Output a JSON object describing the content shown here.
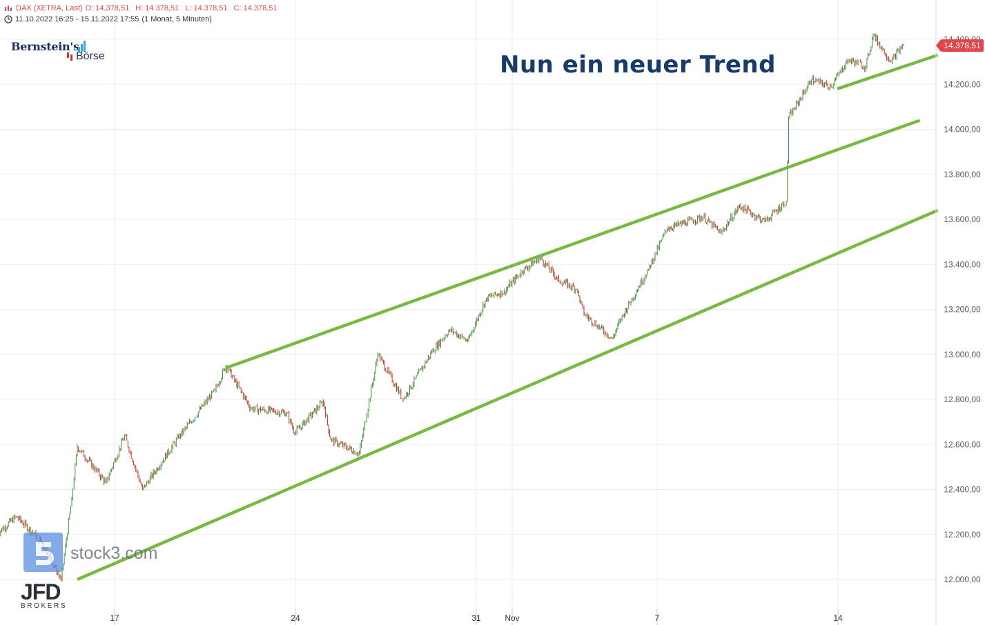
{
  "header": {
    "instrument": "DAX (XETRA, Last)",
    "open": "O: 14,378,51",
    "high": "H: 14.378,51",
    "low": "L: 14.378,51",
    "close": "C: 14.378,51",
    "range": "11.10.2022 16:25 - 15.11.2022 17:55",
    "interval": "(1 Monat, 5 Minuten)"
  },
  "logos": {
    "bernstein_1": "Bernstein's",
    "bernstein_2": "Börse",
    "watermark": "stock3.com",
    "broker": "JFD",
    "broker_sub": "BROKERS"
  },
  "annotation": "Nun ein neuer Trend",
  "last_price_label": "14.378,51",
  "colors": {
    "trendline": "#79b941",
    "candle_up": "#3a8f3a",
    "candle_down": "#c0392b",
    "price_tag": "#e0464a",
    "annotation": "#173c6b",
    "grid": "#eeeeee"
  },
  "chart_data": {
    "type": "line",
    "title": "DAX (XETRA, Last)",
    "ylim": [
      11900,
      14450
    ],
    "y_ticks": [
      12000,
      12200,
      12400,
      12600,
      12800,
      13000,
      13200,
      13400,
      13600,
      13800,
      14000,
      14200,
      14400
    ],
    "y_tick_labels": [
      "12.000,00",
      "12.200,00",
      "12.400,00",
      "12.600,00",
      "12.800,00",
      "13.000,00",
      "13.200,00",
      "13.400,00",
      "13.600,00",
      "13.800,00",
      "14.000,00",
      "14.200,00",
      "14.400,00"
    ],
    "x_ticks": [
      {
        "label": "17",
        "date": "2022-10-17"
      },
      {
        "label": "24",
        "date": "2022-10-24"
      },
      {
        "label": "31",
        "date": "2022-10-31"
      },
      {
        "label": "Nov",
        "date": "2022-11-01"
      },
      {
        "label": "7",
        "date": "2022-11-07"
      },
      {
        "label": "14",
        "date": "2022-11-14"
      }
    ],
    "series": [
      {
        "values": [
          {
            "x": "2022-10-11 16:25",
            "y": 12200
          },
          {
            "x": "2022-10-12 12:00",
            "y": 12280
          },
          {
            "x": "2022-10-13 09:00",
            "y": 12170
          },
          {
            "x": "2022-10-13 14:30",
            "y": 12000
          },
          {
            "x": "2022-10-13 17:30",
            "y": 12360
          },
          {
            "x": "2022-10-14 09:00",
            "y": 12590
          },
          {
            "x": "2022-10-14 17:00",
            "y": 12430
          },
          {
            "x": "2022-10-17 12:00",
            "y": 12640
          },
          {
            "x": "2022-10-17 17:00",
            "y": 12400
          },
          {
            "x": "2022-10-18 17:00",
            "y": 12630
          },
          {
            "x": "2022-10-19 17:00",
            "y": 12840
          },
          {
            "x": "2022-10-20 10:00",
            "y": 12950
          },
          {
            "x": "2022-10-20 17:00",
            "y": 12760
          },
          {
            "x": "2022-10-21 17:00",
            "y": 12740
          },
          {
            "x": "2022-10-24 09:00",
            "y": 12650
          },
          {
            "x": "2022-10-24 17:00",
            "y": 12790
          },
          {
            "x": "2022-10-25 09:00",
            "y": 12620
          },
          {
            "x": "2022-10-25 17:00",
            "y": 12560
          },
          {
            "x": "2022-10-26 12:00",
            "y": 13000
          },
          {
            "x": "2022-10-27 09:00",
            "y": 12800
          },
          {
            "x": "2022-10-27 17:00",
            "y": 13010
          },
          {
            "x": "2022-10-28 12:00",
            "y": 13110
          },
          {
            "x": "2022-10-28 17:00",
            "y": 13060
          },
          {
            "x": "2022-10-31 12:00",
            "y": 13250
          },
          {
            "x": "2022-10-31 17:00",
            "y": 13280
          },
          {
            "x": "2022-11-01 12:00",
            "y": 13370
          },
          {
            "x": "2022-11-01 17:00",
            "y": 13430
          },
          {
            "x": "2022-11-02 12:00",
            "y": 13330
          },
          {
            "x": "2022-11-02 17:00",
            "y": 13290
          },
          {
            "x": "2022-11-03 09:00",
            "y": 13180
          },
          {
            "x": "2022-11-03 17:00",
            "y": 13070
          },
          {
            "x": "2022-11-04 09:00",
            "y": 13150
          },
          {
            "x": "2022-11-04 17:00",
            "y": 13380
          },
          {
            "x": "2022-11-07 12:00",
            "y": 13560
          },
          {
            "x": "2022-11-08 12:00",
            "y": 13610
          },
          {
            "x": "2022-11-08 17:00",
            "y": 13540
          },
          {
            "x": "2022-11-09 12:00",
            "y": 13660
          },
          {
            "x": "2022-11-10 09:00",
            "y": 13590
          },
          {
            "x": "2022-11-10 15:00",
            "y": 13680
          },
          {
            "x": "2022-11-10 15:40",
            "y": 14050
          },
          {
            "x": "2022-11-11 12:00",
            "y": 14220
          },
          {
            "x": "2022-11-11 17:30",
            "y": 14190
          },
          {
            "x": "2022-11-14 12:00",
            "y": 14310
          },
          {
            "x": "2022-11-14 17:00",
            "y": 14280
          },
          {
            "x": "2022-11-15 09:00",
            "y": 14420
          },
          {
            "x": "2022-11-15 14:00",
            "y": 14300
          },
          {
            "x": "2022-11-15 17:55",
            "y": 14378.51
          }
        ]
      }
    ],
    "trendlines": [
      {
        "x0": "2022-10-14 09:00",
        "y0": 12000,
        "x1": "2022-11-16 17:00",
        "y1": 13640
      },
      {
        "x0": "2022-10-20 10:00",
        "y0": 12940,
        "x1": "2022-11-16 12:00",
        "y1": 14040
      },
      {
        "x0": "2022-11-14 09:00",
        "y0": 14180,
        "x1": "2022-11-16 17:00",
        "y1": 14330
      }
    ],
    "last_value": 14378.51,
    "grid": true
  }
}
